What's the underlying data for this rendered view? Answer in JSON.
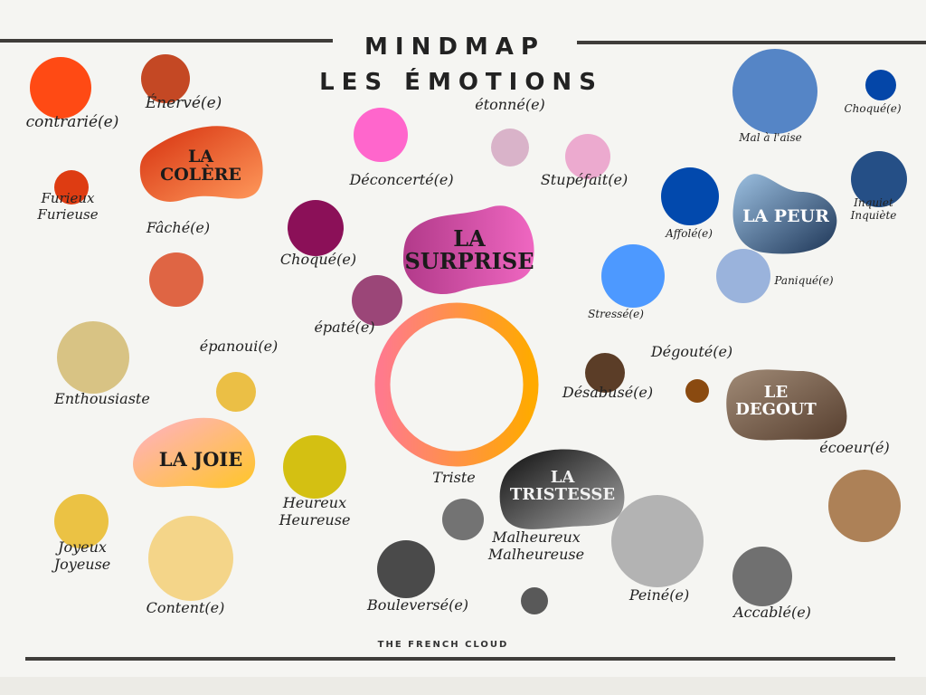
{
  "header": {
    "line1": "MINDMAP",
    "line2": "LES ÉMOTIONS",
    "credit": "THE FRENCH CLOUD",
    "rule_color": "#3f3d3a"
  },
  "center_ring": {
    "gradient": [
      "#ff7a8c",
      "#ffaa00"
    ]
  },
  "categories": [
    {
      "key": "colere",
      "text": "LA\nCOLÈRE",
      "colors": [
        "#d6300e",
        "#ff9a5c"
      ],
      "text_color": "#1b1b1b"
    },
    {
      "key": "surprise",
      "text": "LA\nSURPRISE",
      "colors": [
        "#b23a8a",
        "#ef67c1"
      ],
      "text_color": "#1b1b1b"
    },
    {
      "key": "peur",
      "text": "LA PEUR",
      "colors": [
        "#9cc0e1",
        "#1d3556"
      ],
      "text_color": "#ffffff"
    },
    {
      "key": "joie",
      "text": "LA JOIE",
      "colors": [
        "#ffb0c8",
        "#ffc627"
      ],
      "text_color": "#1b1b1b"
    },
    {
      "key": "degout",
      "text": "LE\nDEGOUT",
      "colors": [
        "#a08a76",
        "#573f2f"
      ],
      "text_color": "#ffffff"
    },
    {
      "key": "tristesse",
      "text": "LA\nTRISTESSE",
      "colors": [
        "#0d0d0d",
        "#a6a6a6"
      ],
      "text_color": "#f2f2f2"
    }
  ],
  "bubbles": [
    {
      "label": "contrarié(e)",
      "color": "#ff4a14"
    },
    {
      "label": "Énervé(e)",
      "color": "#c44824"
    },
    {
      "label": "Furieux\nFurieuse",
      "color": "#de3c12"
    },
    {
      "label": "Fâché(e)",
      "color": "#df6544"
    },
    {
      "label": "Déconcerté(e)",
      "color": "#ff66cc"
    },
    {
      "label": "étonné(e)",
      "color": "#d9b3c9"
    },
    {
      "label": "Stupéfait(e)",
      "color": "#ecaacf"
    },
    {
      "label": "Choqué(e)",
      "color": "#8b1058"
    },
    {
      "label": "épaté(e)",
      "color": "#9b4678"
    },
    {
      "label": "Mal à l'aise",
      "color": "#5585c6"
    },
    {
      "label": "Choqué(e)",
      "color": "#0446a8"
    },
    {
      "label": "Affolé(e)",
      "color": "#0249ad"
    },
    {
      "label": "Inquiet\nInquiète",
      "color": "#254f86"
    },
    {
      "label": "Stressé(e)",
      "color": "#4d99ff"
    },
    {
      "label": "Paniqué(e)",
      "color": "#9ab3dc"
    },
    {
      "label": "Enthousiaste",
      "color": "#d8c384"
    },
    {
      "label": "épanoui(e)",
      "color": "#ebbf45"
    },
    {
      "label": "Heureux\nHeureuse",
      "color": "#d4c012"
    },
    {
      "label": "Joyeux\nJoyeuse",
      "color": "#ebc244"
    },
    {
      "label": "Content(e)",
      "color": "#f4d589"
    },
    {
      "label": "Désabusé(e)",
      "color": "#5b3d27"
    },
    {
      "label": "Dégouté(e)",
      "color": "#8a4a10"
    },
    {
      "label": "écoeur(é)",
      "color": "#ad8157"
    },
    {
      "label": "Triste",
      "color": "#737373"
    },
    {
      "label": "Malheureux\nMalheureuse",
      "color": "#595959"
    },
    {
      "label": "Bouleversé(e)",
      "color": "#4a4a4a"
    },
    {
      "label": "Peiné(e)",
      "color": "#b3b3b3"
    },
    {
      "label": "Accablé(e)",
      "color": "#707070"
    }
  ]
}
